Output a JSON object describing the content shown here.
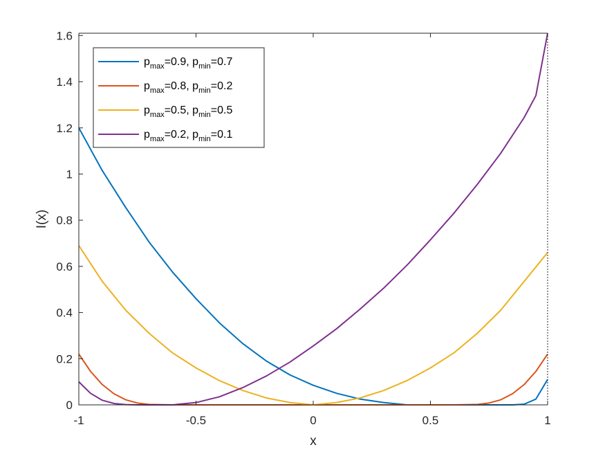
{
  "chart_data": {
    "type": "line",
    "title": "",
    "xlabel": "x",
    "ylabel": "I(x)",
    "xlim": [
      -1,
      1
    ],
    "ylim": [
      0,
      1.61
    ],
    "xticks": [
      -1,
      -0.5,
      0,
      0.5,
      1
    ],
    "xtick_labels": [
      "-1",
      "-0.5",
      "0",
      "0.5",
      "1"
    ],
    "yticks": [
      0,
      0.2,
      0.4,
      0.6,
      0.8,
      1,
      1.2,
      1.4,
      1.6
    ],
    "ytick_labels": [
      "0",
      "0.2",
      "0.4",
      "0.6",
      "0.8",
      "1",
      "1.2",
      "1.4",
      "1.6"
    ],
    "grid": false,
    "legend_position": "top-left",
    "series": [
      {
        "name": "p_max=0.9, p_min=0.7",
        "legend": {
          "p1": "p",
          "s1": "max",
          "m1": "=0.9, p",
          "s2": "min",
          "m2": "=0.7"
        },
        "color": "#0072BD",
        "x": [
          -1,
          -0.9,
          -0.8,
          -0.7,
          -0.6,
          -0.5,
          -0.4,
          -0.3,
          -0.2,
          -0.1,
          0,
          0.1,
          0.2,
          0.3,
          0.4,
          0.5,
          0.6,
          0.7,
          0.8,
          0.85,
          0.9,
          0.95,
          1
        ],
        "y": [
          1.2,
          1.015,
          0.855,
          0.705,
          0.575,
          0.46,
          0.355,
          0.265,
          0.19,
          0.13,
          0.085,
          0.05,
          0.025,
          0.01,
          0.0,
          0.0,
          0.0,
          0.0,
          0.0,
          0.0,
          0.003,
          0.025,
          0.11
        ]
      },
      {
        "name": "p_max=0.8, p_min=0.2",
        "legend": {
          "p1": "p",
          "s1": "max",
          "m1": "=0.8, p",
          "s2": "min",
          "m2": "=0.2"
        },
        "color": "#D95319",
        "x": [
          -1,
          -0.95,
          -0.9,
          -0.85,
          -0.8,
          -0.75,
          -0.7,
          -0.6,
          -0.4,
          0,
          0.4,
          0.6,
          0.7,
          0.75,
          0.8,
          0.85,
          0.9,
          0.95,
          1
        ],
        "y": [
          0.22,
          0.145,
          0.088,
          0.048,
          0.022,
          0.008,
          0.002,
          0.0,
          0.0,
          0.0,
          0.0,
          0.0,
          0.002,
          0.008,
          0.022,
          0.048,
          0.088,
          0.145,
          0.22
        ]
      },
      {
        "name": "p_max=0.5, p_min=0.5",
        "legend": {
          "p1": "p",
          "s1": "max",
          "m1": "=0.5, p",
          "s2": "min",
          "m2": "=0.5"
        },
        "color": "#EDB120",
        "x": [
          -1,
          -0.9,
          -0.8,
          -0.7,
          -0.6,
          -0.5,
          -0.4,
          -0.3,
          -0.2,
          -0.1,
          0,
          0.1,
          0.2,
          0.3,
          0.4,
          0.5,
          0.6,
          0.7,
          0.8,
          0.9,
          1
        ],
        "y": [
          0.69,
          0.535,
          0.41,
          0.31,
          0.225,
          0.16,
          0.105,
          0.062,
          0.03,
          0.01,
          0.0,
          0.01,
          0.03,
          0.062,
          0.105,
          0.16,
          0.225,
          0.31,
          0.41,
          0.535,
          0.66
        ]
      },
      {
        "name": "p_max=0.2, p_min=0.1",
        "legend": {
          "p1": "p",
          "s1": "max",
          "m1": "=0.2, p",
          "s2": "min",
          "m2": "=0.1"
        },
        "color": "#7E2F8E",
        "x": [
          -1,
          -0.95,
          -0.9,
          -0.85,
          -0.8,
          -0.75,
          -0.7,
          -0.6,
          -0.5,
          -0.4,
          -0.3,
          -0.2,
          -0.1,
          0,
          0.1,
          0.2,
          0.3,
          0.4,
          0.5,
          0.6,
          0.7,
          0.8,
          0.9,
          0.95,
          1
        ],
        "y": [
          0.1,
          0.05,
          0.02,
          0.006,
          0.001,
          0.0,
          0.0,
          0.0,
          0.01,
          0.035,
          0.075,
          0.125,
          0.185,
          0.255,
          0.33,
          0.415,
          0.505,
          0.605,
          0.715,
          0.83,
          0.955,
          1.09,
          1.245,
          1.34,
          1.61
        ]
      }
    ]
  }
}
